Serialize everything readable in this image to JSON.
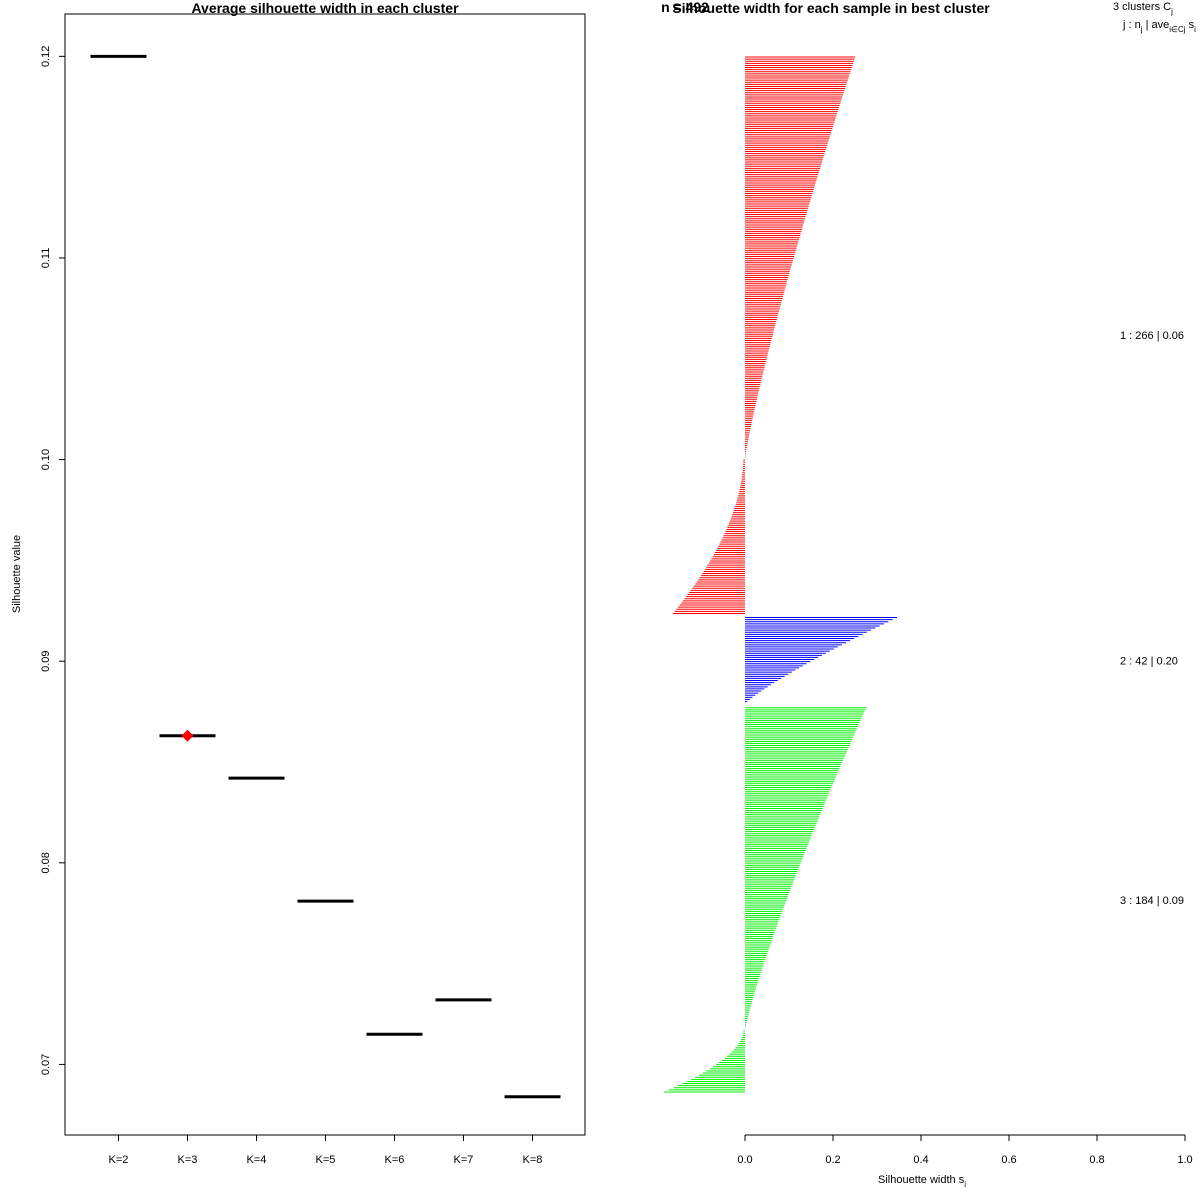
{
  "chart_data": [
    {
      "type": "line",
      "title": "Average silhouette width in each cluster",
      "xlabel": "",
      "ylabel": "Silhouette value",
      "categories": [
        "K=2",
        "K=3",
        "K=4",
        "K=5",
        "K=6",
        "K=7",
        "K=8"
      ],
      "values": [
        0.12,
        0.0863,
        0.0842,
        0.0781,
        0.0715,
        0.0732,
        0.0684
      ],
      "best_k": "K=3",
      "best_marker_color": "#ff0000",
      "yticks": [
        "0.07",
        "0.08",
        "0.09",
        "0.10",
        "0.11",
        "0.12"
      ],
      "ylim": [
        0.0665,
        0.1221
      ]
    },
    {
      "type": "bar",
      "orientation": "horizontal",
      "title": "Silhouette width for each sample in best cluster",
      "overlapped_title": "n = 492",
      "xlabel": "Silhouette width s",
      "xlabel_sub": "i",
      "xlim": [
        0,
        1
      ],
      "xticks": [
        "0.0",
        "0.2",
        "0.4",
        "0.6",
        "0.8",
        "1.0"
      ],
      "header": {
        "line1": "3  clusters  C",
        "line1_sub": "j",
        "line2_a": "j :  n",
        "line2_b": "j",
        "line2_c": " | ave",
        "line2_d": "i∈Cj",
        "line2_e": "  s",
        "line2_f": "i"
      },
      "clusters": [
        {
          "label": "1 :  266  |  0.06",
          "n": 266,
          "avg": 0.06,
          "max": 0.25,
          "min": -0.16,
          "neg_count": 74,
          "color": "#ff0000"
        },
        {
          "label": "2 :  42  |  0.20",
          "n": 42,
          "avg": 0.2,
          "max": 0.345,
          "min": 0.0,
          "neg_count": 0,
          "color": "#0000ff"
        },
        {
          "label": "3 :  184  |  0.09",
          "n": 184,
          "avg": 0.09,
          "max": 0.275,
          "min": -0.18,
          "neg_count": 30,
          "color": "#00ee00"
        }
      ]
    }
  ]
}
